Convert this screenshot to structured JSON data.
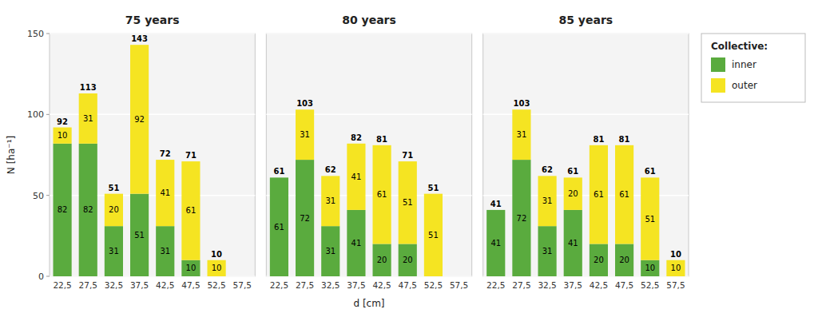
{
  "chart_data": [
    {
      "type": "bar",
      "stacked": true,
      "title": "75 years",
      "categories": [
        "22,5",
        "27,5",
        "32,5",
        "37,5",
        "42,5",
        "47,5",
        "52,5",
        "57,5"
      ],
      "series": [
        {
          "name": "inner",
          "color": "#5aab3e",
          "values": [
            82,
            82,
            31,
            51,
            31,
            10,
            0,
            0
          ]
        },
        {
          "name": "outer",
          "color": "#f5e422",
          "values": [
            10,
            31,
            20,
            92,
            41,
            61,
            10,
            0
          ]
        }
      ],
      "totals": [
        92,
        113,
        51,
        143,
        72,
        71,
        10,
        0
      ],
      "y_label": "N [ha⁻¹]",
      "ylim": [
        0,
        150
      ],
      "yticks": [
        0,
        50,
        100,
        150
      ],
      "grid": true,
      "data_labels": true
    },
    {
      "type": "bar",
      "stacked": true,
      "title": "80 years",
      "categories": [
        "22,5",
        "27,5",
        "32,5",
        "37,5",
        "42,5",
        "47,5",
        "52,5",
        "57,5"
      ],
      "series": [
        {
          "name": "inner",
          "color": "#5aab3e",
          "values": [
            61,
            72,
            31,
            41,
            20,
            20,
            0,
            0
          ]
        },
        {
          "name": "outer",
          "color": "#f5e422",
          "values": [
            0,
            31,
            31,
            41,
            61,
            51,
            51,
            0
          ]
        }
      ],
      "totals": [
        61,
        103,
        62,
        82,
        81,
        71,
        51,
        0
      ],
      "x_label": "d [cm]",
      "ylim": [
        0,
        150
      ],
      "yticks": [
        0,
        50,
        100,
        150
      ],
      "grid": true,
      "data_labels": true,
      "tick_labels": "x"
    },
    {
      "type": "bar",
      "stacked": true,
      "title": "85 years",
      "categories": [
        "22,5",
        "27,5",
        "32,5",
        "37,5",
        "42,5",
        "47,5",
        "52,5",
        "57,5"
      ],
      "series": [
        {
          "name": "inner",
          "color": "#5aab3e",
          "values": [
            41,
            72,
            31,
            41,
            20,
            20,
            10,
            0
          ]
        },
        {
          "name": "outer",
          "color": "#f5e422",
          "values": [
            0,
            31,
            31,
            20,
            61,
            61,
            51,
            10
          ]
        }
      ],
      "totals": [
        41,
        103,
        62,
        61,
        81,
        81,
        61,
        10
      ],
      "ylim": [
        0,
        150
      ],
      "yticks": [
        0,
        50,
        100,
        150
      ],
      "grid": true,
      "data_labels": true,
      "tick_labels": "x",
      "legend": "right",
      "legend_title": "Collective:"
    }
  ]
}
